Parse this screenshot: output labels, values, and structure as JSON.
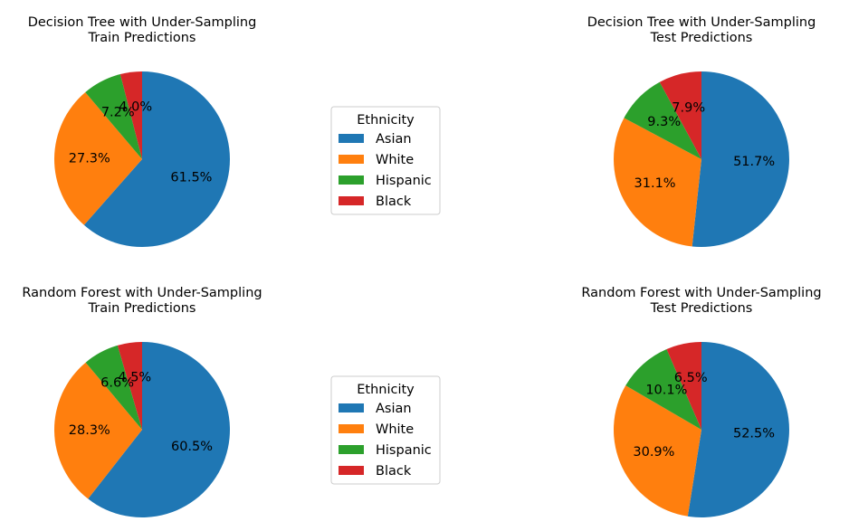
{
  "colors": {
    "Asian": "#1f77b4",
    "White": "#ff7f0e",
    "Hispanic": "#2ca02c",
    "Black": "#d62728"
  },
  "legend": {
    "title": "Ethnicity",
    "entries": [
      "Asian",
      "White",
      "Hispanic",
      "Black"
    ]
  },
  "chart_data": [
    {
      "type": "pie",
      "title": "Decision Tree with Under-Sampling\nTrain Predictions",
      "labels": [
        "Asian",
        "White",
        "Hispanic",
        "Black"
      ],
      "values": [
        61.5,
        27.3,
        7.2,
        4.0
      ],
      "value_labels": [
        "61.5%",
        "27.3%",
        "7.2%",
        "4.0%"
      ]
    },
    {
      "type": "pie",
      "title": "Decision Tree with Under-Sampling\nTest Predictions",
      "labels": [
        "Asian",
        "White",
        "Hispanic",
        "Black"
      ],
      "values": [
        51.7,
        31.1,
        9.3,
        7.9
      ],
      "value_labels": [
        "51.7%",
        "31.1%",
        "9.3%",
        "7.9%"
      ]
    },
    {
      "type": "pie",
      "title": "Random Forest with Under-Sampling\nTrain Predictions",
      "labels": [
        "Asian",
        "White",
        "Hispanic",
        "Black"
      ],
      "values": [
        60.5,
        28.3,
        6.6,
        4.5
      ],
      "value_labels": [
        "60.5%",
        "28.3%",
        "6.6%",
        "4.5%"
      ]
    },
    {
      "type": "pie",
      "title": "Random Forest with Under-Sampling\nTest Predictions",
      "labels": [
        "Asian",
        "White",
        "Hispanic",
        "Black"
      ],
      "values": [
        52.5,
        30.9,
        10.1,
        6.5
      ],
      "value_labels": [
        "52.5%",
        "30.9%",
        "10.1%",
        "6.5%"
      ]
    }
  ]
}
